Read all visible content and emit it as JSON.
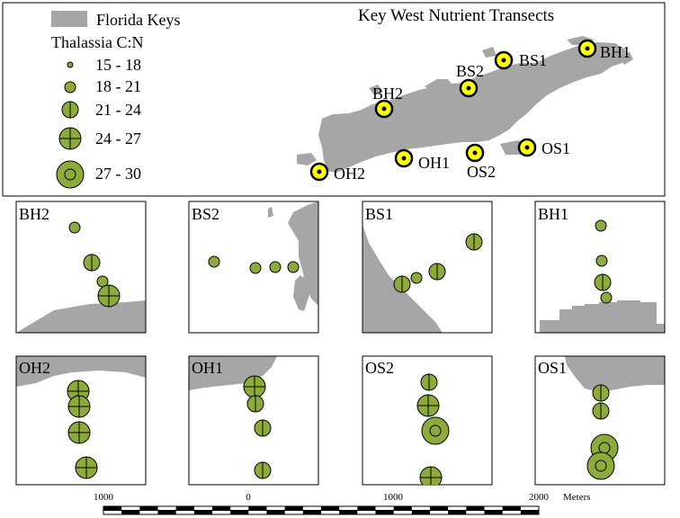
{
  "title": "Key West Nutrient Transects",
  "legend": {
    "land_label": "Florida Keys",
    "variable_label": "Thalassia C:N",
    "classes": [
      {
        "label": "15 - 18",
        "class": 1
      },
      {
        "label": "18 - 21",
        "class": 2
      },
      {
        "label": "21 - 24",
        "class": 3
      },
      {
        "label": "24 - 27",
        "class": 4
      },
      {
        "label": "27 - 30",
        "class": 5
      }
    ]
  },
  "colors": {
    "land": "#a6a6a6",
    "symbol_fill": "#8cab3a",
    "station_marker": "#ffff00",
    "outline": "#000000"
  },
  "stations": [
    "BH1",
    "BS1",
    "BS2",
    "BH2",
    "OS1",
    "OS2",
    "OH1",
    "OH2"
  ],
  "panels": [
    {
      "label": "BH2",
      "samples": [
        2,
        3,
        2,
        4
      ]
    },
    {
      "label": "BS2",
      "samples": [
        2,
        2,
        2,
        2
      ]
    },
    {
      "label": "BS1",
      "samples": [
        3,
        2,
        3,
        3
      ]
    },
    {
      "label": "BH1",
      "samples": [
        2,
        2,
        3,
        2
      ]
    },
    {
      "label": "OH2",
      "samples": [
        4,
        4,
        4,
        4
      ]
    },
    {
      "label": "OH1",
      "samples": [
        4,
        3,
        3,
        3
      ]
    },
    {
      "label": "OS2",
      "samples": [
        3,
        4,
        5,
        4
      ]
    },
    {
      "label": "OS1",
      "samples": [
        3,
        3,
        5,
        5
      ]
    }
  ],
  "scale_bar": {
    "ticks": [
      "1000",
      "0",
      "1000",
      "2000"
    ],
    "unit": "Meters"
  }
}
